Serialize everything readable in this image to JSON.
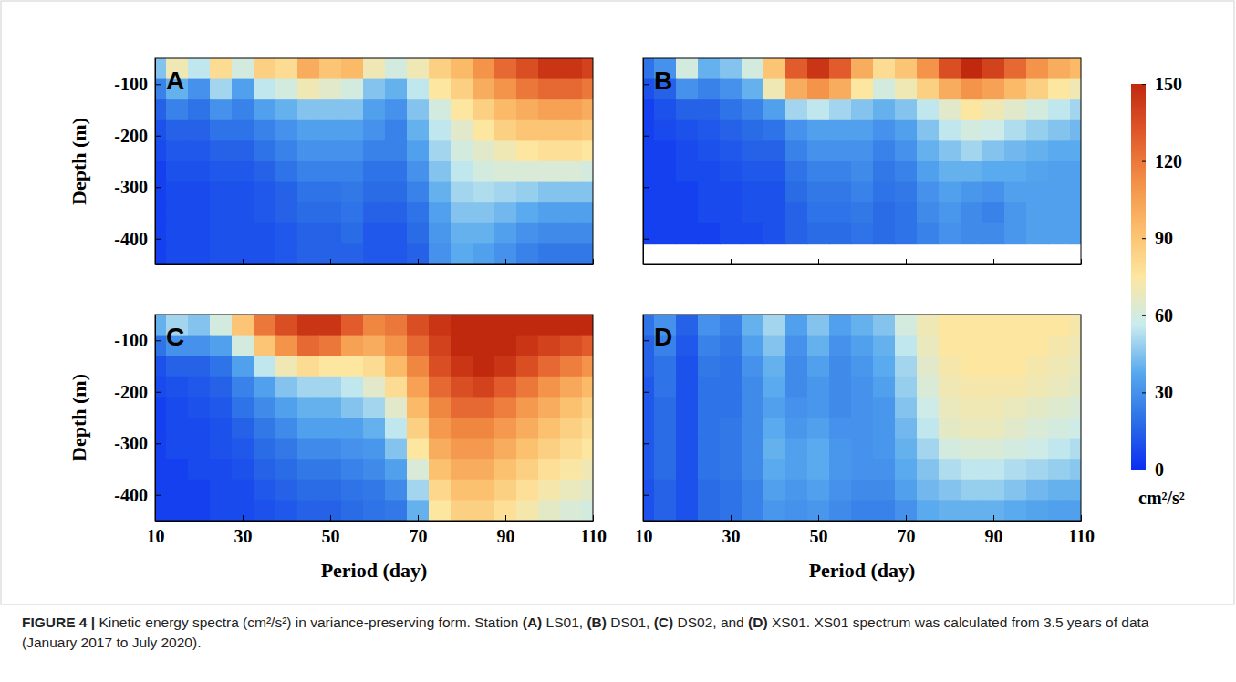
{
  "chart_data": [
    {
      "type": "heatmap",
      "title": "A",
      "ylabel": "Depth (m)",
      "tick_labels": "y",
      "x": [
        10,
        15,
        20,
        25,
        30,
        35,
        40,
        45,
        50,
        55,
        60,
        65,
        70,
        75,
        80,
        85,
        90,
        95,
        100,
        105,
        110
      ],
      "y": [
        -70,
        -110,
        -150,
        -190,
        -230,
        -270,
        -310,
        -350,
        -390,
        -430
      ],
      "xlim": [
        10,
        110
      ],
      "ylim": [
        -450,
        -50
      ],
      "xticks": [
        10,
        30,
        50,
        70,
        90,
        110
      ],
      "yticks": [
        -100,
        -200,
        -300,
        -400
      ],
      "values": [
        [
          45,
          70,
          55,
          80,
          60,
          85,
          80,
          100,
          90,
          95,
          70,
          60,
          70,
          85,
          95,
          110,
          125,
          135,
          145,
          145,
          140
        ],
        [
          25,
          40,
          30,
          50,
          35,
          55,
          60,
          70,
          65,
          60,
          45,
          40,
          55,
          75,
          85,
          100,
          110,
          120,
          125,
          125,
          120
        ],
        [
          15,
          25,
          20,
          30,
          25,
          35,
          40,
          45,
          45,
          45,
          35,
          30,
          45,
          60,
          75,
          85,
          95,
          100,
          105,
          105,
          100
        ],
        [
          10,
          15,
          15,
          20,
          20,
          25,
          30,
          35,
          35,
          35,
          30,
          25,
          40,
          55,
          65,
          75,
          85,
          90,
          90,
          90,
          88
        ],
        [
          8,
          12,
          12,
          15,
          15,
          20,
          25,
          30,
          30,
          30,
          25,
          25,
          35,
          50,
          60,
          65,
          70,
          75,
          78,
          78,
          75
        ],
        [
          5,
          10,
          10,
          12,
          12,
          15,
          20,
          25,
          25,
          25,
          20,
          20,
          30,
          45,
          55,
          60,
          62,
          62,
          62,
          62,
          60
        ],
        [
          5,
          8,
          8,
          10,
          10,
          12,
          15,
          20,
          20,
          22,
          18,
          18,
          25,
          40,
          50,
          52,
          50,
          48,
          45,
          45,
          45
        ],
        [
          5,
          8,
          8,
          10,
          10,
          12,
          15,
          18,
          18,
          20,
          15,
          15,
          20,
          35,
          45,
          45,
          42,
          38,
          35,
          35,
          35
        ],
        [
          5,
          8,
          8,
          10,
          10,
          10,
          12,
          15,
          15,
          18,
          12,
          12,
          18,
          32,
          40,
          40,
          35,
          30,
          28,
          28,
          28
        ],
        [
          5,
          8,
          8,
          10,
          10,
          10,
          12,
          15,
          15,
          15,
          12,
          12,
          15,
          30,
          38,
          35,
          30,
          25,
          22,
          22,
          22
        ]
      ]
    },
    {
      "type": "heatmap",
      "title": "B",
      "tick_labels": false,
      "x": [
        10,
        15,
        20,
        25,
        30,
        35,
        40,
        45,
        50,
        55,
        60,
        65,
        70,
        75,
        80,
        85,
        90,
        95,
        100,
        105,
        110
      ],
      "y": [
        -70,
        -110,
        -150,
        -190,
        -230,
        -270,
        -310,
        -350,
        -390,
        -430
      ],
      "xlim": [
        10,
        110
      ],
      "ylim": [
        -450,
        -50
      ],
      "xticks": [
        10,
        30,
        50,
        70,
        90,
        110
      ],
      "yticks": [
        -100,
        -200,
        -300,
        -400
      ],
      "values": [
        [
          20,
          30,
          60,
          40,
          45,
          60,
          90,
          130,
          145,
          130,
          100,
          80,
          90,
          110,
          135,
          150,
          140,
          125,
          110,
          100,
          95
        ],
        [
          10,
          15,
          30,
          25,
          30,
          40,
          70,
          100,
          110,
          100,
          75,
          60,
          70,
          85,
          100,
          110,
          105,
          95,
          85,
          75,
          70
        ],
        [
          5,
          10,
          15,
          15,
          20,
          25,
          35,
          50,
          55,
          50,
          45,
          40,
          45,
          55,
          65,
          75,
          70,
          65,
          60,
          55,
          50
        ],
        [
          5,
          8,
          10,
          12,
          15,
          18,
          20,
          30,
          35,
          35,
          35,
          30,
          35,
          45,
          55,
          60,
          58,
          52,
          48,
          45,
          42
        ],
        [
          5,
          5,
          8,
          10,
          12,
          15,
          15,
          25,
          30,
          30,
          30,
          25,
          30,
          40,
          45,
          50,
          45,
          42,
          40,
          38,
          38
        ],
        [
          5,
          5,
          8,
          8,
          10,
          12,
          12,
          20,
          25,
          25,
          28,
          22,
          25,
          35,
          40,
          40,
          38,
          38,
          36,
          35,
          35
        ],
        [
          5,
          5,
          5,
          8,
          8,
          10,
          10,
          18,
          22,
          22,
          25,
          20,
          22,
          30,
          35,
          32,
          30,
          35,
          35,
          35,
          35
        ],
        [
          5,
          5,
          5,
          8,
          8,
          10,
          10,
          15,
          20,
          20,
          22,
          18,
          20,
          28,
          32,
          28,
          25,
          32,
          35,
          35,
          35
        ],
        [
          5,
          5,
          5,
          5,
          8,
          8,
          10,
          15,
          18,
          18,
          20,
          18,
          20,
          25,
          30,
          28,
          28,
          32,
          35,
          35,
          35
        ],
        [
          null,
          null,
          null,
          null,
          null,
          null,
          null,
          null,
          null,
          null,
          null,
          null,
          null,
          null,
          null,
          null,
          null,
          null,
          null,
          null,
          null
        ]
      ]
    },
    {
      "type": "heatmap",
      "title": "C",
      "xlabel": "Period (day)",
      "ylabel": "Depth (m)",
      "x": [
        10,
        15,
        20,
        25,
        30,
        35,
        40,
        45,
        50,
        55,
        60,
        65,
        70,
        75,
        80,
        85,
        90,
        95,
        100,
        105,
        110
      ],
      "y": [
        -70,
        -110,
        -150,
        -190,
        -230,
        -270,
        -310,
        -350,
        -390,
        -430
      ],
      "xlim": [
        10,
        110
      ],
      "ylim": [
        -450,
        -50
      ],
      "xticks": [
        10,
        30,
        50,
        70,
        90,
        110
      ],
      "yticks": [
        -100,
        -200,
        -300,
        -400
      ],
      "values": [
        [
          40,
          50,
          45,
          60,
          90,
          120,
          135,
          145,
          145,
          130,
          115,
          120,
          135,
          145,
          150,
          150,
          150,
          150,
          150,
          150,
          150
        ],
        [
          20,
          30,
          30,
          35,
          60,
          90,
          110,
          125,
          120,
          105,
          100,
          110,
          125,
          140,
          150,
          150,
          150,
          145,
          140,
          135,
          130
        ],
        [
          10,
          15,
          15,
          20,
          35,
          55,
          70,
          80,
          75,
          75,
          80,
          95,
          115,
          135,
          145,
          150,
          145,
          135,
          125,
          118,
          110
        ],
        [
          8,
          10,
          12,
          15,
          25,
          35,
          45,
          50,
          50,
          55,
          65,
          80,
          105,
          125,
          135,
          140,
          130,
          120,
          110,
          102,
          95
        ],
        [
          5,
          8,
          10,
          12,
          20,
          28,
          35,
          40,
          40,
          45,
          50,
          65,
          95,
          115,
          125,
          125,
          118,
          108,
          100,
          92,
          85
        ],
        [
          5,
          8,
          8,
          10,
          15,
          22,
          28,
          35,
          35,
          35,
          40,
          55,
          85,
          108,
          115,
          115,
          108,
          100,
          92,
          85,
          80
        ],
        [
          5,
          8,
          8,
          10,
          12,
          18,
          22,
          28,
          28,
          30,
          32,
          45,
          75,
          100,
          108,
          108,
          100,
          92,
          85,
          80,
          75
        ],
        [
          5,
          5,
          8,
          8,
          10,
          15,
          18,
          22,
          22,
          25,
          28,
          35,
          62,
          92,
          100,
          100,
          92,
          85,
          78,
          74,
          70
        ],
        [
          5,
          5,
          5,
          8,
          8,
          12,
          15,
          18,
          18,
          20,
          22,
          28,
          50,
          82,
          92,
          92,
          85,
          78,
          72,
          68,
          65
        ],
        [
          5,
          5,
          5,
          8,
          8,
          10,
          12,
          15,
          15,
          18,
          20,
          22,
          40,
          75,
          85,
          85,
          78,
          72,
          66,
          62,
          60
        ]
      ]
    },
    {
      "type": "heatmap",
      "title": "D",
      "xlabel": "Period (day)",
      "tick_labels": "x",
      "x": [
        10,
        15,
        20,
        25,
        30,
        35,
        40,
        45,
        50,
        55,
        60,
        65,
        70,
        75,
        80,
        85,
        90,
        95,
        100,
        105,
        110
      ],
      "y": [
        -70,
        -110,
        -150,
        -190,
        -230,
        -270,
        -310,
        -350,
        -390,
        -430
      ],
      "xlim": [
        10,
        110
      ],
      "ylim": [
        -450,
        -50
      ],
      "xticks": [
        10,
        30,
        50,
        70,
        90,
        110
      ],
      "yticks": [
        -100,
        -200,
        -300,
        -400
      ],
      "values": [
        [
          20,
          30,
          15,
          30,
          25,
          40,
          50,
          35,
          45,
          35,
          40,
          45,
          60,
          70,
          75,
          75,
          75,
          75,
          75,
          75,
          72
        ],
        [
          15,
          25,
          12,
          25,
          22,
          35,
          45,
          30,
          40,
          30,
          35,
          40,
          55,
          68,
          75,
          75,
          75,
          75,
          75,
          72,
          70
        ],
        [
          15,
          20,
          10,
          22,
          20,
          30,
          40,
          28,
          35,
          28,
          32,
          38,
          50,
          65,
          72,
          75,
          75,
          75,
          72,
          70,
          68
        ],
        [
          12,
          20,
          10,
          20,
          20,
          28,
          38,
          28,
          32,
          28,
          30,
          35,
          48,
          62,
          70,
          72,
          72,
          72,
          70,
          68,
          66
        ],
        [
          12,
          18,
          10,
          20,
          20,
          28,
          35,
          30,
          32,
          28,
          30,
          32,
          45,
          58,
          68,
          70,
          70,
          68,
          66,
          64,
          62
        ],
        [
          12,
          18,
          10,
          20,
          22,
          28,
          38,
          32,
          35,
          30,
          30,
          32,
          42,
          55,
          66,
          68,
          68,
          65,
          62,
          60,
          58
        ],
        [
          12,
          18,
          10,
          20,
          22,
          28,
          40,
          35,
          38,
          32,
          30,
          32,
          40,
          50,
          60,
          62,
          62,
          60,
          58,
          55,
          52
        ],
        [
          12,
          18,
          10,
          20,
          22,
          28,
          38,
          35,
          38,
          32,
          30,
          30,
          38,
          45,
          52,
          55,
          55,
          52,
          50,
          48,
          46
        ],
        [
          10,
          15,
          10,
          18,
          20,
          25,
          35,
          32,
          35,
          30,
          28,
          28,
          35,
          42,
          45,
          48,
          48,
          45,
          42,
          40,
          40
        ],
        [
          10,
          15,
          10,
          18,
          20,
          25,
          32,
          30,
          32,
          28,
          25,
          25,
          30,
          38,
          40,
          40,
          40,
          38,
          36,
          35,
          35
        ]
      ]
    }
  ],
  "colorbar": {
    "range": [
      0,
      150
    ],
    "ticks": [
      0,
      30,
      60,
      90,
      120,
      150
    ],
    "label": "cm²/s²"
  },
  "caption": "FIGURE 4 | Kinetic energy spectra (cm²/s²) in variance-preserving form. Station (A) LS01, (B) DS01, (C) DS02, and (D) XS01. XS01 spectrum was calculated from 3.5 years of data (January 2017 to July 2020)."
}
